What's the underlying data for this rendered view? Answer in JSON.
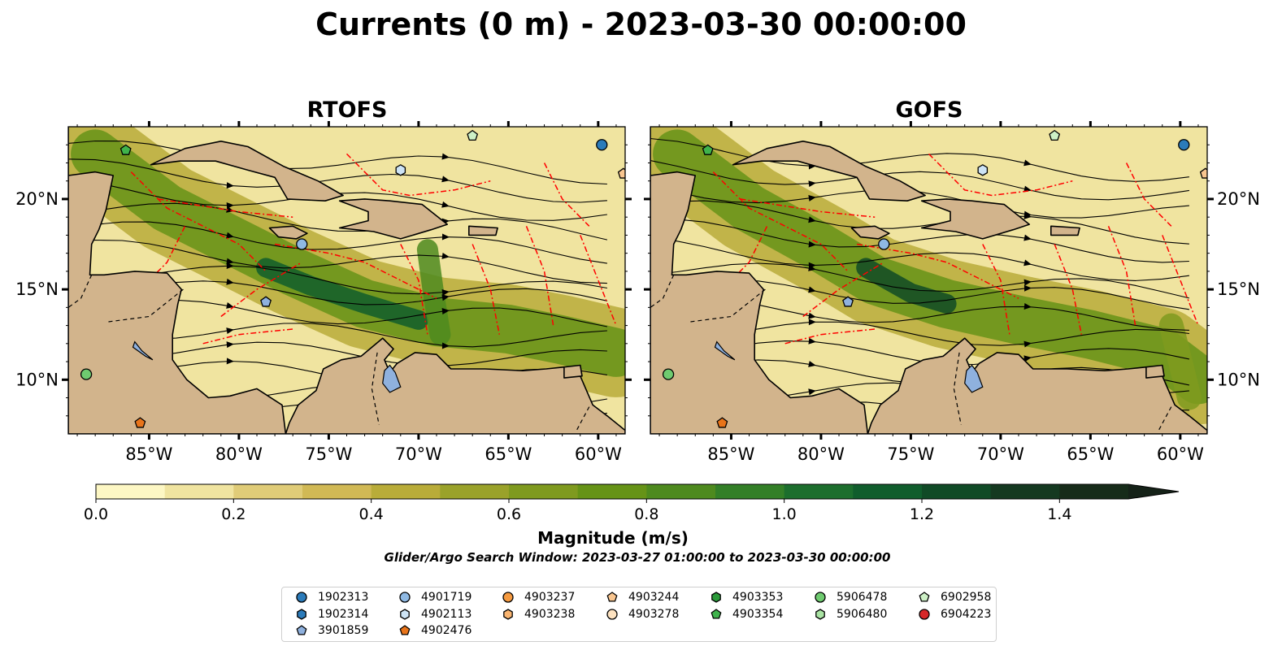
{
  "title": "Currents (0 m) - 2023-03-30 00:00:00",
  "panels": [
    {
      "title": "RTOFS"
    },
    {
      "title": "GOFS"
    }
  ],
  "axes": {
    "x_ticks": [
      "85°W",
      "80°W",
      "75°W",
      "70°W",
      "65°W",
      "60°W"
    ],
    "x_tick_values": [
      -85,
      -80,
      -75,
      -70,
      -65,
      -60
    ],
    "y_ticks": [
      "20°N",
      "15°N",
      "10°N"
    ],
    "y_tick_values": [
      20,
      15,
      10
    ],
    "lon_range": [
      -89.5,
      -58.5
    ],
    "lat_range": [
      7,
      24
    ]
  },
  "colorbar": {
    "label": "Magnitude (m/s)",
    "ticks": [
      "0.0",
      "0.2",
      "0.4",
      "0.6",
      "0.8",
      "1.0",
      "1.2",
      "1.4"
    ],
    "tick_values": [
      0,
      0.2,
      0.4,
      0.6,
      0.8,
      1.0,
      1.2,
      1.4
    ],
    "range": [
      0,
      1.5
    ],
    "step": 0.1,
    "extend": "max",
    "colors": [
      "#fdf7c4",
      "#f0e4a0",
      "#e0cc78",
      "#d1b955",
      "#b9ac39",
      "#9aa22a",
      "#7f9a1f",
      "#669317",
      "#4e8a1e",
      "#337f27",
      "#1c6e2d",
      "#105d2c",
      "#104a26",
      "#153920",
      "#162b19"
    ],
    "extend_color": "#152218"
  },
  "search_window": "Glider/Argo Search Window: 2023-03-27 01:00:00 to 2023-03-30 00:00:00",
  "map_colors": {
    "land": "#d2b48c",
    "lakes": "#8fb1de",
    "eez_lines": "#ff0000",
    "streamlines": "#000000"
  },
  "legend": {
    "items": [
      {
        "id": "1902313",
        "marker": "circle",
        "color": "#2b7bba"
      },
      {
        "id": "1902314",
        "marker": "hexagon",
        "color": "#2b7bba"
      },
      {
        "id": "3901859",
        "marker": "pentagon",
        "color": "#8fb1de"
      },
      {
        "id": "4901719",
        "marker": "circle",
        "color": "#8fb9e3"
      },
      {
        "id": "4902113",
        "marker": "hexagon",
        "color": "#cde3f5"
      },
      {
        "id": "4902476",
        "marker": "pentagon",
        "color": "#e8741a"
      },
      {
        "id": "4903237",
        "marker": "circle",
        "color": "#f59a40"
      },
      {
        "id": "4903238",
        "marker": "hexagon",
        "color": "#f9b470"
      },
      {
        "id": "4903244",
        "marker": "pentagon",
        "color": "#f9c690"
      },
      {
        "id": "4903278",
        "marker": "circle",
        "color": "#fde2c0"
      },
      {
        "id": "4903353",
        "marker": "hexagon",
        "color": "#2b9a3a"
      },
      {
        "id": "4903354",
        "marker": "pentagon",
        "color": "#3fb34c"
      },
      {
        "id": "5906478",
        "marker": "circle",
        "color": "#6fcb70"
      },
      {
        "id": "5906480",
        "marker": "hexagon",
        "color": "#a9e3a3"
      },
      {
        "id": "6902958",
        "marker": "pentagon",
        "color": "#cdf0c6"
      },
      {
        "id": "6904223",
        "marker": "circle",
        "color": "#d62728"
      }
    ]
  },
  "float_positions": [
    {
      "id": "1902313",
      "lon": -59.8,
      "lat": 23.0
    },
    {
      "id": "3901859",
      "lon": -78.5,
      "lat": 14.3
    },
    {
      "id": "4901719",
      "lon": -76.5,
      "lat": 17.5
    },
    {
      "id": "4902113",
      "lon": -71.0,
      "lat": 21.6
    },
    {
      "id": "4902476",
      "lon": -85.5,
      "lat": 7.6
    },
    {
      "id": "4903244",
      "lon": -58.6,
      "lat": 21.4
    },
    {
      "id": "4903354",
      "lon": -86.3,
      "lat": 22.7
    },
    {
      "id": "5906478",
      "lon": -88.5,
      "lat": 10.3
    },
    {
      "id": "6902958",
      "lon": -67.0,
      "lat": 23.5
    }
  ]
}
